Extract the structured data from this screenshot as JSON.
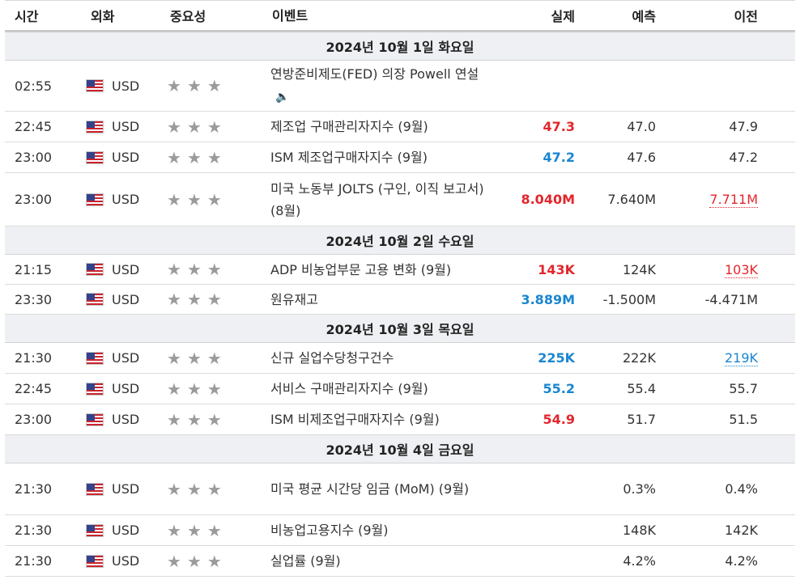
{
  "header": {
    "time": "시간",
    "currency": "외화",
    "importance": "중요성",
    "event": "이벤트",
    "actual": "실제",
    "forecast": "예측",
    "previous": "이전"
  },
  "days": [
    {
      "label": "2024년 10월 1일 화요일"
    },
    {
      "label": "2024년 10월 2일 수요일"
    },
    {
      "label": "2024년 10월 3일 목요일"
    },
    {
      "label": "2024년 10월 4일 금요일"
    }
  ],
  "rows": [
    {
      "time": "02:55",
      "currency": "USD",
      "event": "연방준비제도(FED) 의장 Powell 연설",
      "actual": "",
      "forecast": "",
      "previous": "",
      "has_speech": true
    },
    {
      "time": "22:45",
      "currency": "USD",
      "event": "제조업 구매관리자지수 (9월)",
      "actual": "47.3",
      "actual_color": "red",
      "forecast": "47.0",
      "previous": "47.9"
    },
    {
      "time": "23:00",
      "currency": "USD",
      "event": "ISM 제조업구매자지수 (9월)",
      "actual": "47.2",
      "actual_color": "blue",
      "forecast": "47.6",
      "previous": "47.2"
    },
    {
      "time": "23:00",
      "currency": "USD",
      "event": "미국 노동부 JOLTS (구인, 이직 보고서) (8월)",
      "actual": "8.040M",
      "actual_color": "red",
      "forecast": "7.640M",
      "previous": "7.711M",
      "previous_color": "red"
    },
    {
      "time": "21:15",
      "currency": "USD",
      "event": "ADP 비농업부문 고용 변화 (9월)",
      "actual": "143K",
      "actual_color": "red",
      "forecast": "124K",
      "previous": "103K",
      "previous_color": "red"
    },
    {
      "time": "23:30",
      "currency": "USD",
      "event": "원유재고",
      "actual": "3.889M",
      "actual_color": "blue",
      "forecast": "-1.500M",
      "previous": "-4.471M"
    },
    {
      "time": "21:30",
      "currency": "USD",
      "event": "신규 실업수당청구건수",
      "actual": "225K",
      "actual_color": "blue",
      "forecast": "222K",
      "previous": "219K",
      "previous_color": "blue"
    },
    {
      "time": "22:45",
      "currency": "USD",
      "event": "서비스 구매관리자지수 (9월)",
      "actual": "55.2",
      "actual_color": "blue",
      "forecast": "55.4",
      "previous": "55.7"
    },
    {
      "time": "23:00",
      "currency": "USD",
      "event": "ISM 비제조업구매자지수 (9월)",
      "actual": "54.9",
      "actual_color": "red",
      "forecast": "51.7",
      "previous": "51.5"
    },
    {
      "time": "21:30",
      "currency": "USD",
      "event": "미국 평균 시간당 임금 (MoM) (9월)",
      "actual": "",
      "forecast": "0.3%",
      "previous": "0.4%"
    },
    {
      "time": "21:30",
      "currency": "USD",
      "event": "비농업고용지수 (9월)",
      "actual": "",
      "forecast": "148K",
      "previous": "142K"
    },
    {
      "time": "21:30",
      "currency": "USD",
      "event": "실업률 (9월)",
      "actual": "",
      "forecast": "4.2%",
      "previous": "4.2%"
    }
  ],
  "importance_stars": 3,
  "colors": {
    "red": "#e3262d",
    "blue": "#1a86d0",
    "star": "#9b9b9b",
    "day_bg": "#eef0f3"
  },
  "icons": {
    "flag": "us-flag-icon",
    "star": "star-icon",
    "speech": "speaker-icon"
  }
}
